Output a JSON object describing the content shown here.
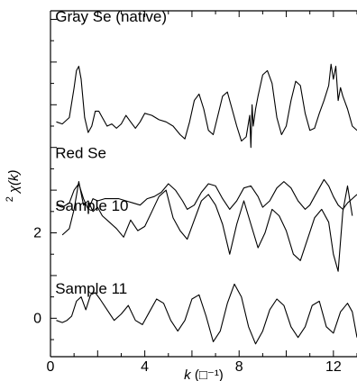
{
  "chart_data": {
    "type": "line",
    "xlabel": "k (Å⁻¹)",
    "xlabel_k": "k",
    "xlabel_unit": "(□⁻¹)",
    "ylabel": "k² χ(k)",
    "ylabel_prefix": "2",
    "ylabel_main": "χ(k)",
    "xlim": [
      0,
      13
    ],
    "ylim": [
      -0.9,
      7.2
    ],
    "xticks": [
      0,
      4,
      8,
      12
    ],
    "xtick_labels": [
      "0",
      "4",
      "8",
      "12"
    ],
    "yticks": [
      0,
      2
    ],
    "ytick_labels": [
      "0",
      "2"
    ],
    "series": [
      {
        "name": "Gray Se (native)",
        "label_pos": {
          "x": 0.2,
          "y": 6.95
        },
        "x": [
          0.25,
          0.5,
          0.8,
          1.0,
          1.1,
          1.2,
          1.3,
          1.45,
          1.6,
          1.75,
          1.9,
          2.05,
          2.2,
          2.4,
          2.6,
          2.8,
          3.0,
          3.2,
          3.4,
          3.6,
          3.8,
          4.0,
          4.3,
          4.6,
          4.9,
          5.2,
          5.5,
          5.7,
          5.9,
          6.1,
          6.3,
          6.5,
          6.7,
          6.9,
          7.1,
          7.3,
          7.5,
          7.7,
          7.9,
          8.1,
          8.3,
          8.45,
          8.5,
          8.55,
          8.6,
          8.7,
          8.8,
          9.0,
          9.2,
          9.4,
          9.6,
          9.8,
          10.0,
          10.2,
          10.4,
          10.6,
          10.8,
          11.0,
          11.2,
          11.4,
          11.6,
          11.8,
          11.9,
          12.0,
          12.1,
          12.2,
          12.3,
          12.4,
          12.6,
          12.8,
          13.0
        ],
        "values": [
          4.6,
          4.55,
          4.7,
          5.4,
          5.8,
          5.9,
          5.6,
          4.7,
          4.35,
          4.5,
          4.85,
          4.85,
          4.7,
          4.5,
          4.55,
          4.45,
          4.55,
          4.75,
          4.6,
          4.45,
          4.6,
          4.8,
          4.75,
          4.65,
          4.6,
          4.5,
          4.3,
          4.2,
          4.6,
          5.1,
          5.25,
          4.9,
          4.4,
          4.3,
          4.75,
          5.2,
          5.3,
          4.9,
          4.5,
          4.15,
          4.25,
          4.75,
          4.0,
          5.0,
          4.5,
          4.9,
          5.2,
          5.7,
          5.8,
          5.5,
          4.7,
          4.3,
          4.5,
          5.1,
          5.55,
          5.45,
          4.8,
          4.4,
          4.45,
          4.8,
          5.1,
          5.45,
          5.95,
          5.6,
          5.9,
          5.1,
          5.4,
          5.2,
          4.9,
          4.5,
          4.4
        ]
      },
      {
        "name": "Red Se",
        "label_pos": {
          "x": 0.2,
          "y": 3.75
        },
        "x": [
          0.25,
          0.5,
          0.8,
          1.0,
          1.2,
          1.4,
          1.6,
          1.8,
          2.0,
          2.3,
          2.6,
          2.9,
          3.2,
          3.5,
          3.8,
          4.1,
          4.4,
          4.7,
          5.0,
          5.3,
          5.6,
          5.8,
          6.1,
          6.4,
          6.7,
          7.0,
          7.3,
          7.6,
          7.9,
          8.2,
          8.5,
          8.8,
          9.0,
          9.3,
          9.6,
          9.9,
          10.2,
          10.5,
          10.8,
          11.0,
          11.2,
          11.4,
          11.6,
          11.8,
          12.0,
          12.2,
          12.4,
          12.6,
          12.8,
          13.0
        ],
        "values": [
          2.65,
          2.6,
          2.7,
          3.0,
          3.15,
          2.8,
          2.55,
          2.8,
          2.75,
          2.8,
          2.8,
          2.8,
          2.75,
          2.7,
          2.65,
          2.8,
          2.85,
          2.95,
          3.15,
          3.0,
          2.75,
          2.55,
          2.65,
          2.95,
          3.15,
          3.1,
          2.8,
          2.55,
          2.75,
          3.05,
          3.1,
          2.85,
          2.6,
          2.75,
          3.05,
          3.2,
          3.05,
          2.75,
          2.55,
          2.65,
          2.85,
          3.05,
          3.25,
          3.1,
          2.85,
          2.65,
          2.55,
          2.7,
          2.8,
          2.9
        ]
      },
      {
        "name": "Sample 10",
        "label_pos": {
          "x": 0.2,
          "y": 2.52
        },
        "x": [
          0.5,
          0.8,
          1.0,
          1.2,
          1.4,
          1.6,
          1.8,
          2.0,
          2.2,
          2.5,
          2.8,
          3.1,
          3.4,
          3.7,
          4.0,
          4.3,
          4.6,
          4.9,
          5.2,
          5.5,
          5.8,
          6.1,
          6.4,
          6.7,
          7.0,
          7.3,
          7.6,
          7.9,
          8.2,
          8.5,
          8.8,
          9.1,
          9.4,
          9.7,
          10.0,
          10.3,
          10.6,
          10.9,
          11.2,
          11.5,
          11.8,
          12.0,
          12.2,
          12.4,
          12.6,
          12.8
        ],
        "values": [
          1.95,
          2.1,
          2.55,
          3.2,
          2.65,
          2.75,
          2.5,
          2.6,
          2.4,
          2.25,
          2.1,
          1.9,
          2.3,
          2.05,
          2.15,
          2.5,
          2.85,
          3.0,
          2.35,
          2.05,
          1.85,
          2.3,
          2.75,
          2.9,
          2.65,
          2.2,
          1.5,
          2.2,
          2.75,
          2.2,
          1.65,
          2.0,
          2.55,
          2.4,
          2.05,
          1.5,
          1.35,
          1.85,
          2.35,
          2.55,
          2.25,
          1.5,
          1.1,
          2.5,
          3.1,
          2.4
        ]
      },
      {
        "name": "Sample 11",
        "label_pos": {
          "x": 0.2,
          "y": 0.58
        },
        "x": [
          0.25,
          0.5,
          0.7,
          0.9,
          1.1,
          1.3,
          1.5,
          1.7,
          1.9,
          2.1,
          2.4,
          2.7,
          3.0,
          3.3,
          3.6,
          3.9,
          4.2,
          4.5,
          4.8,
          5.1,
          5.4,
          5.7,
          6.0,
          6.3,
          6.6,
          6.9,
          7.2,
          7.5,
          7.8,
          8.1,
          8.4,
          8.7,
          9.0,
          9.3,
          9.6,
          9.9,
          10.2,
          10.5,
          10.8,
          11.1,
          11.4,
          11.7,
          12.0,
          12.3,
          12.6,
          12.8,
          13.0
        ],
        "values": [
          -0.05,
          -0.1,
          -0.05,
          0.05,
          0.4,
          0.5,
          0.2,
          0.55,
          0.6,
          0.45,
          0.2,
          -0.05,
          0.1,
          0.3,
          -0.05,
          -0.15,
          0.15,
          0.45,
          0.35,
          -0.05,
          -0.3,
          -0.05,
          0.45,
          0.55,
          0.05,
          -0.55,
          -0.3,
          0.35,
          0.8,
          0.5,
          -0.2,
          -0.6,
          -0.3,
          0.2,
          0.45,
          0.3,
          -0.2,
          -0.45,
          -0.2,
          0.3,
          0.4,
          -0.2,
          -0.35,
          0.15,
          0.35,
          0.15,
          -0.45
        ]
      }
    ]
  }
}
